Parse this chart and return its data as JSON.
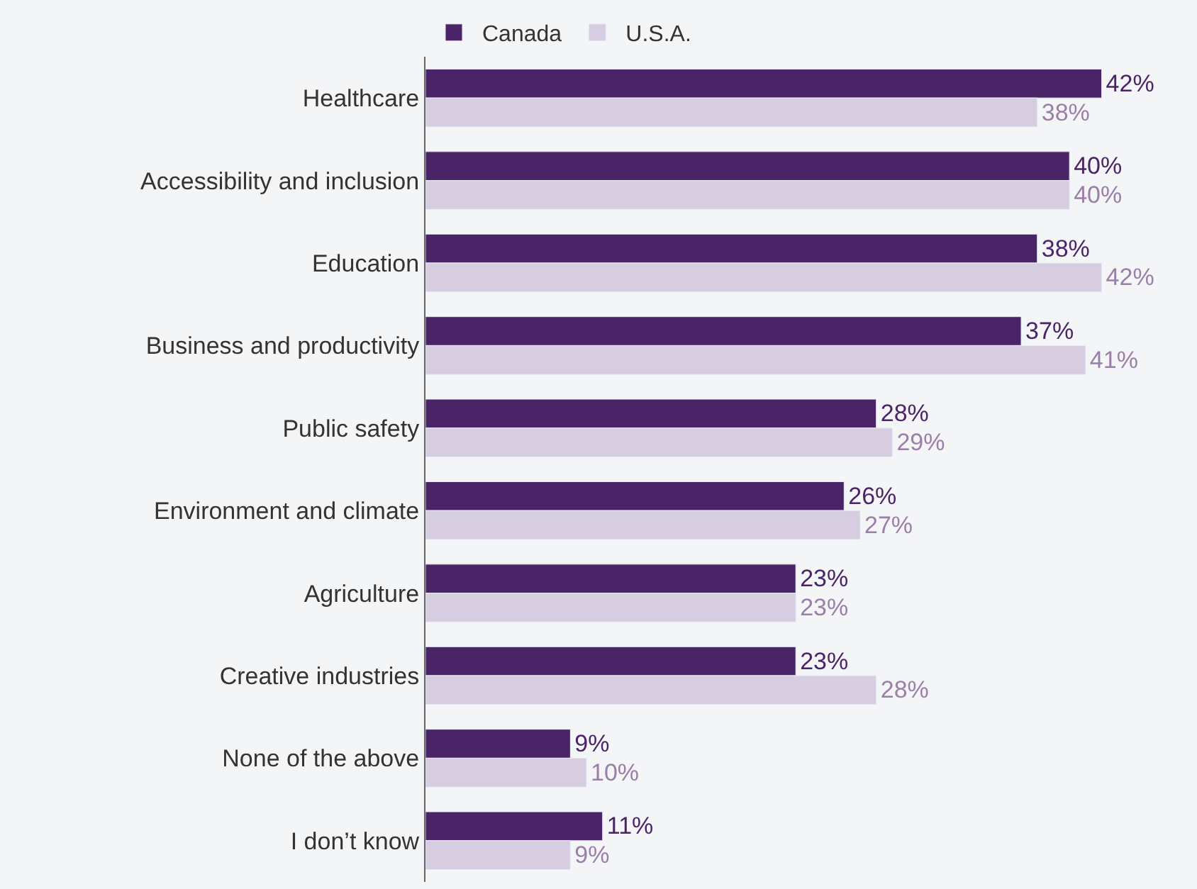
{
  "chart_data": {
    "type": "bar",
    "orientation": "horizontal",
    "categories": [
      "Healthcare",
      "Accessibility and inclusion",
      "Education",
      "Business and productivity",
      "Public safety",
      "Environment and climate",
      "Agriculture",
      "Creative industries",
      "None of the above",
      "I don’t know"
    ],
    "series": [
      {
        "name": "Canada",
        "color": "#4b2467",
        "values": [
          42,
          40,
          38,
          37,
          28,
          26,
          23,
          23,
          9,
          11
        ],
        "value_labels": [
          "42%",
          "40%",
          "38%",
          "37%",
          "28%",
          "26%",
          "23%",
          "23%",
          "9%",
          "11%"
        ]
      },
      {
        "name": "U.S.A.",
        "color": "#d6cee0",
        "values": [
          38,
          40,
          42,
          41,
          29,
          27,
          23,
          28,
          10,
          9
        ],
        "value_labels": [
          "38%",
          "40%",
          "42%",
          "41%",
          "29%",
          "27%",
          "23%",
          "28%",
          "10%",
          "9%"
        ]
      }
    ],
    "legend": "top left",
    "tick_labels": "y",
    "grid": false
  }
}
